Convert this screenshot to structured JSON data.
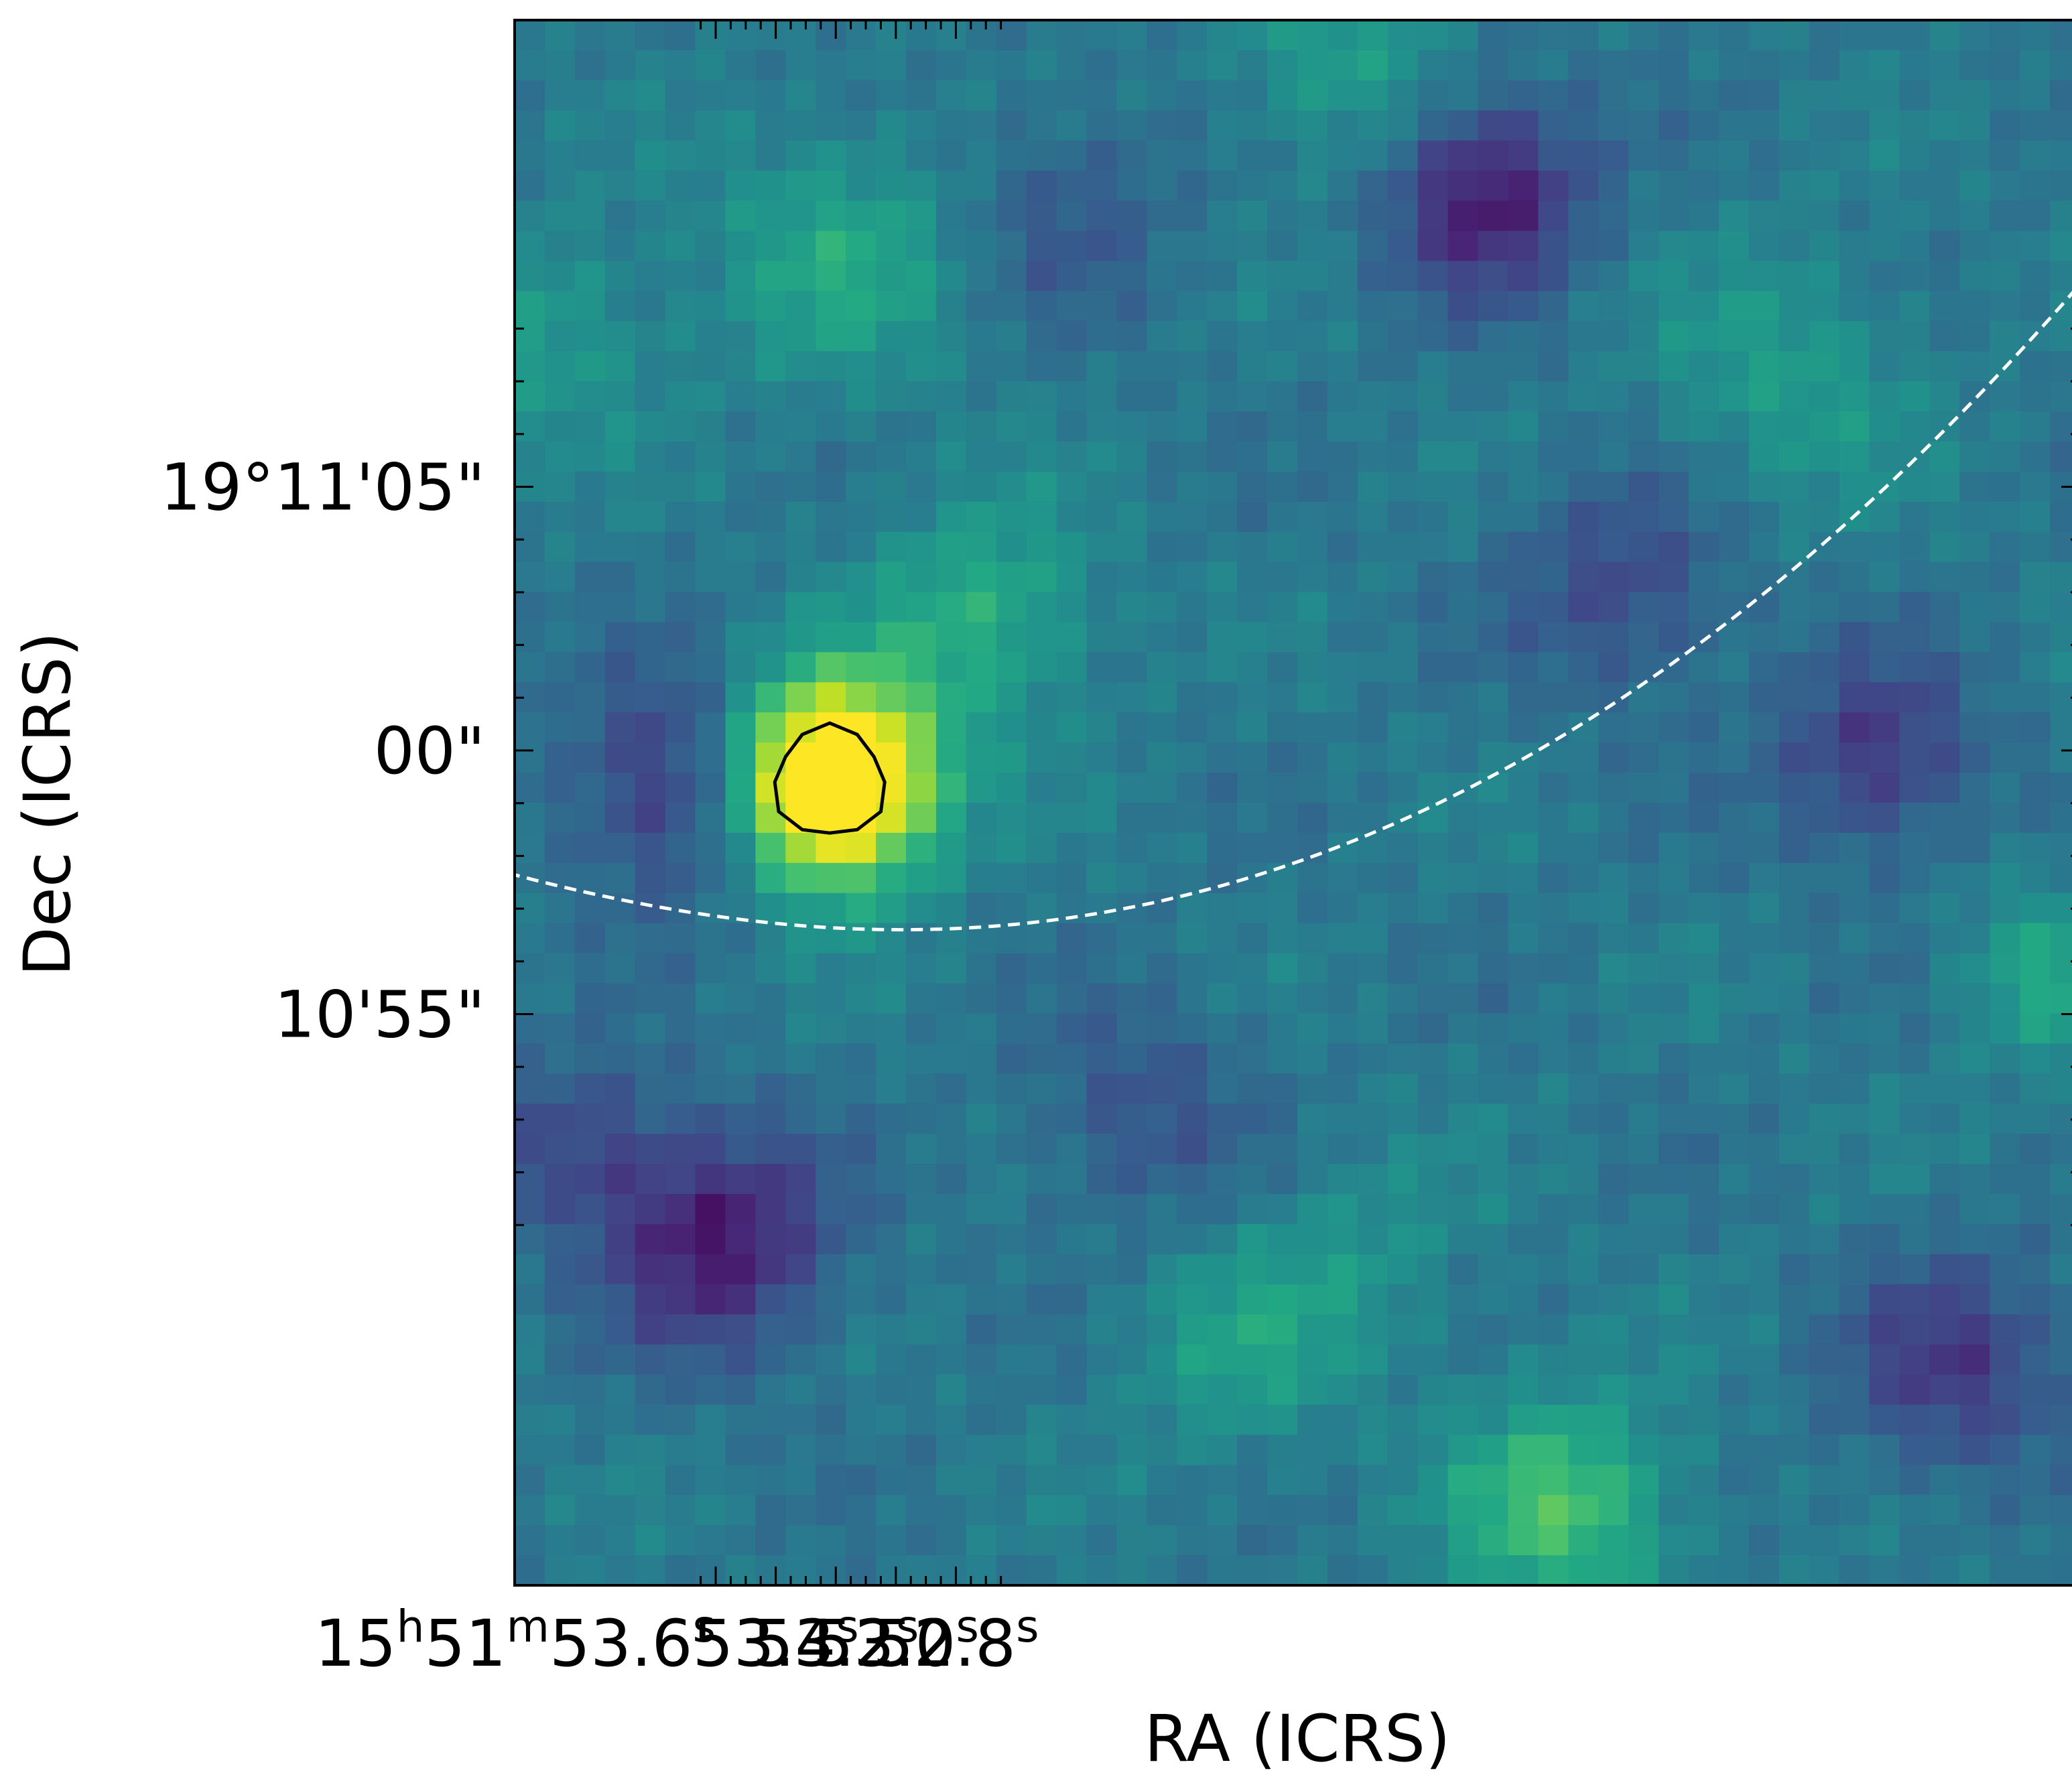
{
  "chart_data": {
    "type": "heatmap",
    "title": "",
    "xlabel": "RA (ICRS)",
    "ylabel": "Dec (ICRS)",
    "x_ticks": [
      {
        "parts": [
          [
            "15",
            ""
          ],
          [
            "h",
            "sup"
          ],
          [
            "51",
            ""
          ],
          [
            "m",
            "sup"
          ],
          [
            "53.6",
            ""
          ],
          [
            "s",
            "sup"
          ]
        ],
        "ra_s": 53.6
      },
      {
        "parts": [
          [
            "53.4",
            ""
          ],
          [
            "s",
            "sup"
          ]
        ],
        "ra_s": 53.4
      },
      {
        "parts": [
          [
            "53.2",
            ""
          ],
          [
            "s",
            "sup"
          ]
        ],
        "ra_s": 53.2
      },
      {
        "parts": [
          [
            "53.0",
            ""
          ],
          [
            "s",
            "sup"
          ]
        ],
        "ra_s": 53.0
      },
      {
        "parts": [
          [
            "52.8",
            ""
          ],
          [
            "s",
            "sup"
          ]
        ],
        "ra_s": 52.8
      }
    ],
    "y_ticks": [
      {
        "label": "19°11'05\"",
        "dec_arcsec_offset": 5
      },
      {
        "label": "00\"",
        "dec_arcsec_offset": 0
      },
      {
        "label": "10'55\"",
        "dec_arcsec_offset": -5
      }
    ],
    "colormap": "viridis",
    "grid": false,
    "legend": "none",
    "source": {
      "ra_s": 53.22,
      "dec_arcsec_offset": -0.6,
      "contour_color": "#000000"
    },
    "dashed_curve": {
      "color": "#ffffff",
      "style": "dashed",
      "min_ra_s": 52.98,
      "min_dec_arcsec_offset": -3.4
    },
    "colors": {
      "viridis": [
        "#440154",
        "#482475",
        "#414487",
        "#355f8d",
        "#2a788e",
        "#21918c",
        "#22a884",
        "#44bf70",
        "#7ad151",
        "#bddf26",
        "#fde725"
      ]
    }
  }
}
